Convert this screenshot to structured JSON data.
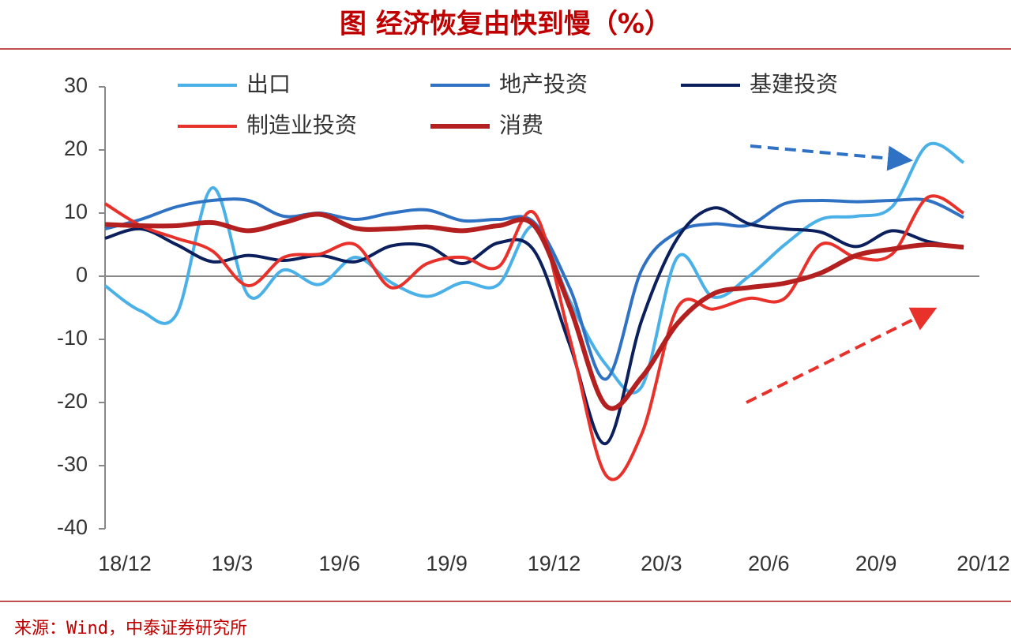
{
  "chart_data": {
    "type": "line",
    "title": "图 经济恢复由快到慢（%）",
    "source": "来源：Wind，中泰证券研究所",
    "categories": [
      "18/12",
      null,
      null,
      "19/3",
      null,
      null,
      "19/6",
      null,
      null,
      "19/9",
      null,
      null,
      "19/12",
      null,
      null,
      "20/3",
      null,
      null,
      "20/6",
      null,
      null,
      "20/9",
      null,
      null,
      "20/12"
    ],
    "ylim": [
      -40,
      30
    ],
    "yticks": [
      30,
      20,
      10,
      0,
      -10,
      -20,
      -30,
      -40
    ],
    "series": [
      {
        "name": "出口",
        "color": "#4ab0e8",
        "values": [
          -1.5,
          -5.5,
          -6,
          14,
          -3,
          1,
          -1.3,
          3,
          -1,
          -3.2,
          -1,
          -1.3,
          8,
          -4,
          -14,
          -17.5,
          3,
          -3.3,
          0,
          5,
          9,
          9.5,
          11,
          20.8,
          18
        ]
      },
      {
        "name": "地产投资",
        "color": "#2f72c4",
        "values": [
          7.5,
          9,
          11,
          12,
          12,
          9.5,
          10,
          9,
          10,
          10.5,
          8.8,
          9,
          8.5,
          -2,
          -16.3,
          1,
          7,
          8.3,
          8.1,
          11.5,
          12,
          11.8,
          12,
          12,
          9.3
        ]
      },
      {
        "name": "基建投资",
        "color": "#0b1f5c",
        "values": [
          6,
          7.5,
          5,
          2.3,
          3.3,
          2.5,
          3.3,
          2.3,
          4.8,
          4.8,
          2,
          5.3,
          4,
          -11,
          -26.5,
          -7,
          6,
          10.8,
          8.3,
          7.5,
          7,
          4.7,
          7.2,
          5.5,
          4.5
        ]
      },
      {
        "name": "制造业投资",
        "color": "#e8312a",
        "values": [
          11.5,
          8,
          6,
          4,
          -1.5,
          3,
          3.5,
          5,
          -1.8,
          2,
          3,
          1.5,
          10,
          -10,
          -31.5,
          -25,
          -5,
          -5.2,
          -3.5,
          -3.5,
          5,
          3,
          3.5,
          12.5,
          10
        ]
      },
      {
        "name": "消费",
        "color": "#b3201f",
        "values": [
          8.2,
          8,
          8,
          8.5,
          7.2,
          8.5,
          9.8,
          7.6,
          7.5,
          7.8,
          7.2,
          8,
          8,
          -5,
          -20.5,
          -16,
          -7.5,
          -2.8,
          -1.8,
          -1.1,
          0.5,
          3.3,
          4.3,
          5,
          4.6
        ]
      }
    ]
  }
}
